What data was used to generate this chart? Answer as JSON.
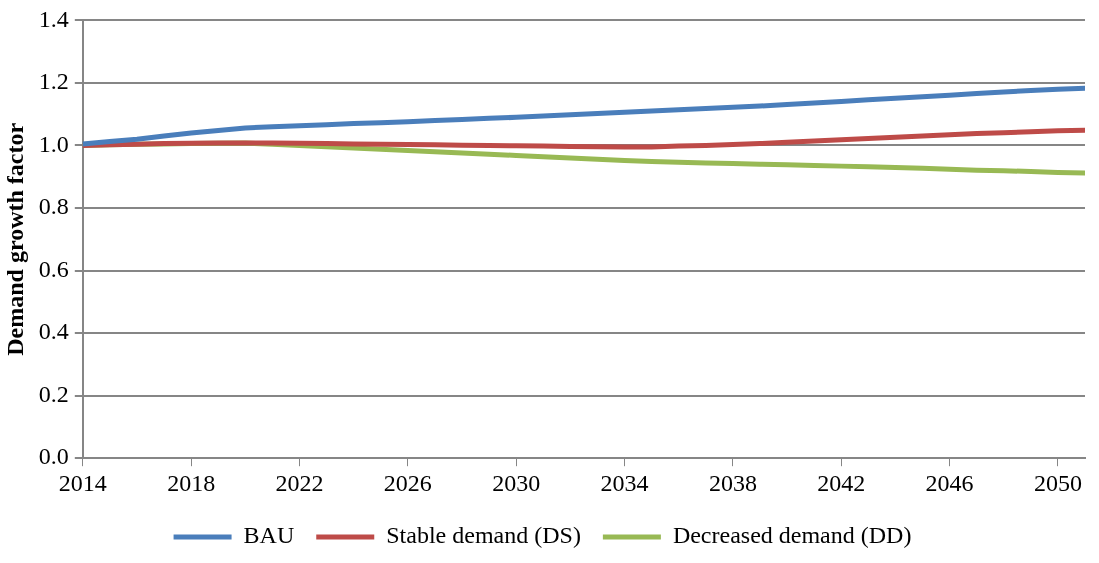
{
  "chart_data": {
    "type": "line",
    "ylabel": "Demand growth factor",
    "x": [
      2014,
      2015,
      2016,
      2017,
      2018,
      2019,
      2020,
      2021,
      2022,
      2023,
      2024,
      2025,
      2026,
      2027,
      2028,
      2029,
      2030,
      2031,
      2032,
      2033,
      2034,
      2035,
      2036,
      2037,
      2038,
      2039,
      2040,
      2041,
      2042,
      2043,
      2044,
      2045,
      2046,
      2047,
      2048,
      2049,
      2050,
      2051
    ],
    "xlim": [
      2014,
      2051
    ],
    "xticks": [
      2014,
      2018,
      2022,
      2026,
      2030,
      2034,
      2038,
      2042,
      2046,
      2050
    ],
    "ylim": [
      0,
      1.4
    ],
    "yticks": [
      {
        "value": 0,
        "label": "0.0"
      },
      {
        "value": 0.2,
        "label": "0.2"
      },
      {
        "value": 0.4,
        "label": "0.4"
      },
      {
        "value": 0.6,
        "label": "0.6"
      },
      {
        "value": 0.8,
        "label": "0.8"
      },
      {
        "value": 1,
        "label": "1.0"
      },
      {
        "value": 1.2,
        "label": "1.2"
      },
      {
        "value": 1.4,
        "label": "1.4"
      }
    ],
    "grid": "y",
    "legend": "bottom",
    "marker": "none",
    "line_style": "solid",
    "series": [
      {
        "name": "BAU",
        "color": "#4a7ebb",
        "values": [
          1.005,
          1.013,
          1.02,
          1.03,
          1.04,
          1.048,
          1.056,
          1.06,
          1.063,
          1.066,
          1.07,
          1.073,
          1.076,
          1.08,
          1.083,
          1.087,
          1.09,
          1.094,
          1.098,
          1.102,
          1.106,
          1.11,
          1.114,
          1.118,
          1.122,
          1.126,
          1.131,
          1.136,
          1.141,
          1.146,
          1.151,
          1.156,
          1.161,
          1.166,
          1.171,
          1.176,
          1.18,
          1.183
        ]
      },
      {
        "name": "Stable demand (DS)",
        "color": "#be4b48",
        "values": [
          1.0,
          1.002,
          1.004,
          1.006,
          1.007,
          1.008,
          1.008,
          1.008,
          1.007,
          1.006,
          1.005,
          1.004,
          1.003,
          1.002,
          1.001,
          1.0,
          0.999,
          0.998,
          0.997,
          0.996,
          0.995,
          0.995,
          0.998,
          1.0,
          1.003,
          1.006,
          1.01,
          1.014,
          1.018,
          1.022,
          1.026,
          1.03,
          1.034,
          1.038,
          1.041,
          1.044,
          1.047,
          1.049
        ]
      },
      {
        "name": "Decreased demand (DD)",
        "color": "#98b954",
        "values": [
          1.0,
          1.002,
          1.004,
          1.005,
          1.006,
          1.007,
          1.008,
          1.004,
          1.0,
          0.996,
          0.992,
          0.988,
          0.984,
          0.98,
          0.976,
          0.972,
          0.968,
          0.964,
          0.96,
          0.956,
          0.952,
          0.949,
          0.946,
          0.944,
          0.942,
          0.94,
          0.938,
          0.936,
          0.934,
          0.932,
          0.93,
          0.927,
          0.924,
          0.921,
          0.919,
          0.917,
          0.914,
          0.912
        ]
      }
    ]
  }
}
